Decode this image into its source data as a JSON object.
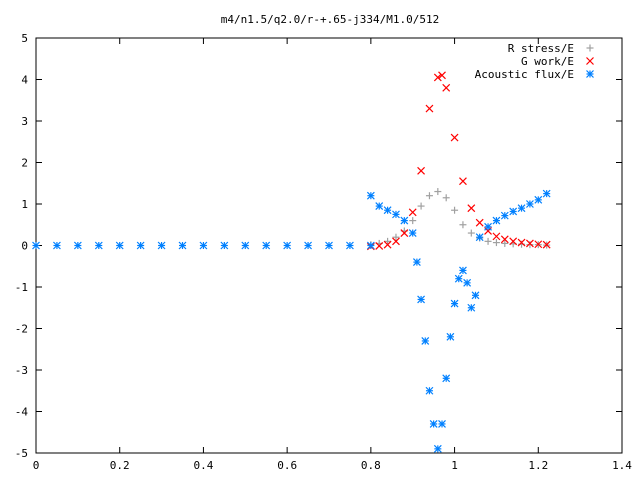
{
  "chart_data": {
    "type": "scatter",
    "title": "m4/n1.5/q2.0/r-+.65-j334/M1.0/512",
    "xlabel": "",
    "ylabel": "",
    "xlim": [
      0,
      1.4
    ],
    "ylim": [
      -5,
      5
    ],
    "x_ticks": [
      "0",
      "0.2",
      "0.4",
      "0.6",
      "0.8",
      "1",
      "1.2",
      "1.4"
    ],
    "y_ticks": [
      "5",
      "4",
      "3",
      "2",
      "1",
      "0",
      "-1",
      "-2",
      "-3",
      "-4",
      "-5"
    ],
    "grid": false,
    "legend_position": "top-right",
    "series": [
      {
        "name": "R stress/E",
        "marker": "plus",
        "color": "#a0a0a0",
        "x": [
          0.8,
          0.82,
          0.84,
          0.86,
          0.88,
          0.9,
          0.92,
          0.94,
          0.96,
          0.98,
          1.0,
          1.02,
          1.04,
          1.06,
          1.08,
          1.1,
          1.12,
          1.14,
          1.16,
          1.18,
          1.2,
          1.22
        ],
        "y": [
          0.02,
          0.05,
          0.1,
          0.2,
          0.35,
          0.6,
          0.95,
          1.2,
          1.3,
          1.15,
          0.85,
          0.5,
          0.3,
          0.18,
          0.1,
          0.07,
          0.05,
          0.04,
          0.03,
          0.02,
          0.02,
          0.01
        ]
      },
      {
        "name": "G work/E",
        "marker": "cross",
        "color": "#ff0000",
        "x": [
          0.8,
          0.82,
          0.84,
          0.86,
          0.88,
          0.9,
          0.92,
          0.94,
          0.96,
          0.97,
          0.98,
          1.0,
          1.02,
          1.04,
          1.06,
          1.08,
          1.1,
          1.12,
          1.14,
          1.16,
          1.18,
          1.2,
          1.22
        ],
        "y": [
          -0.02,
          -0.01,
          0.02,
          0.1,
          0.3,
          0.8,
          1.8,
          3.3,
          4.05,
          4.1,
          3.8,
          2.6,
          1.55,
          0.9,
          0.55,
          0.35,
          0.22,
          0.15,
          0.1,
          0.07,
          0.05,
          0.03,
          0.02
        ]
      },
      {
        "name": "Acoustic flux/E",
        "marker": "star",
        "color": "#0080ff",
        "x": [
          0.0,
          0.05,
          0.1,
          0.15,
          0.2,
          0.25,
          0.3,
          0.35,
          0.4,
          0.45,
          0.5,
          0.55,
          0.6,
          0.65,
          0.7,
          0.75,
          0.8,
          0.8,
          0.82,
          0.84,
          0.86,
          0.88,
          0.9,
          0.91,
          0.92,
          0.93,
          0.94,
          0.95,
          0.96,
          0.97,
          0.98,
          0.99,
          1.0,
          1.01,
          1.02,
          1.03,
          1.04,
          1.05,
          1.06,
          1.08,
          1.1,
          1.12,
          1.14,
          1.16,
          1.18,
          1.2,
          1.22
        ],
        "y": [
          0,
          0,
          0,
          0,
          0,
          0,
          0,
          0,
          0,
          0,
          0,
          0,
          0,
          0,
          0,
          0,
          0,
          1.2,
          0.95,
          0.85,
          0.75,
          0.6,
          0.3,
          -0.4,
          -1.3,
          -2.3,
          -3.5,
          -4.3,
          -4.9,
          -4.3,
          -3.2,
          -2.2,
          -1.4,
          -0.8,
          -0.6,
          -0.9,
          -1.5,
          -1.2,
          0.2,
          0.45,
          0.6,
          0.72,
          0.82,
          0.9,
          1.0,
          1.1,
          1.25
        ]
      }
    ]
  }
}
